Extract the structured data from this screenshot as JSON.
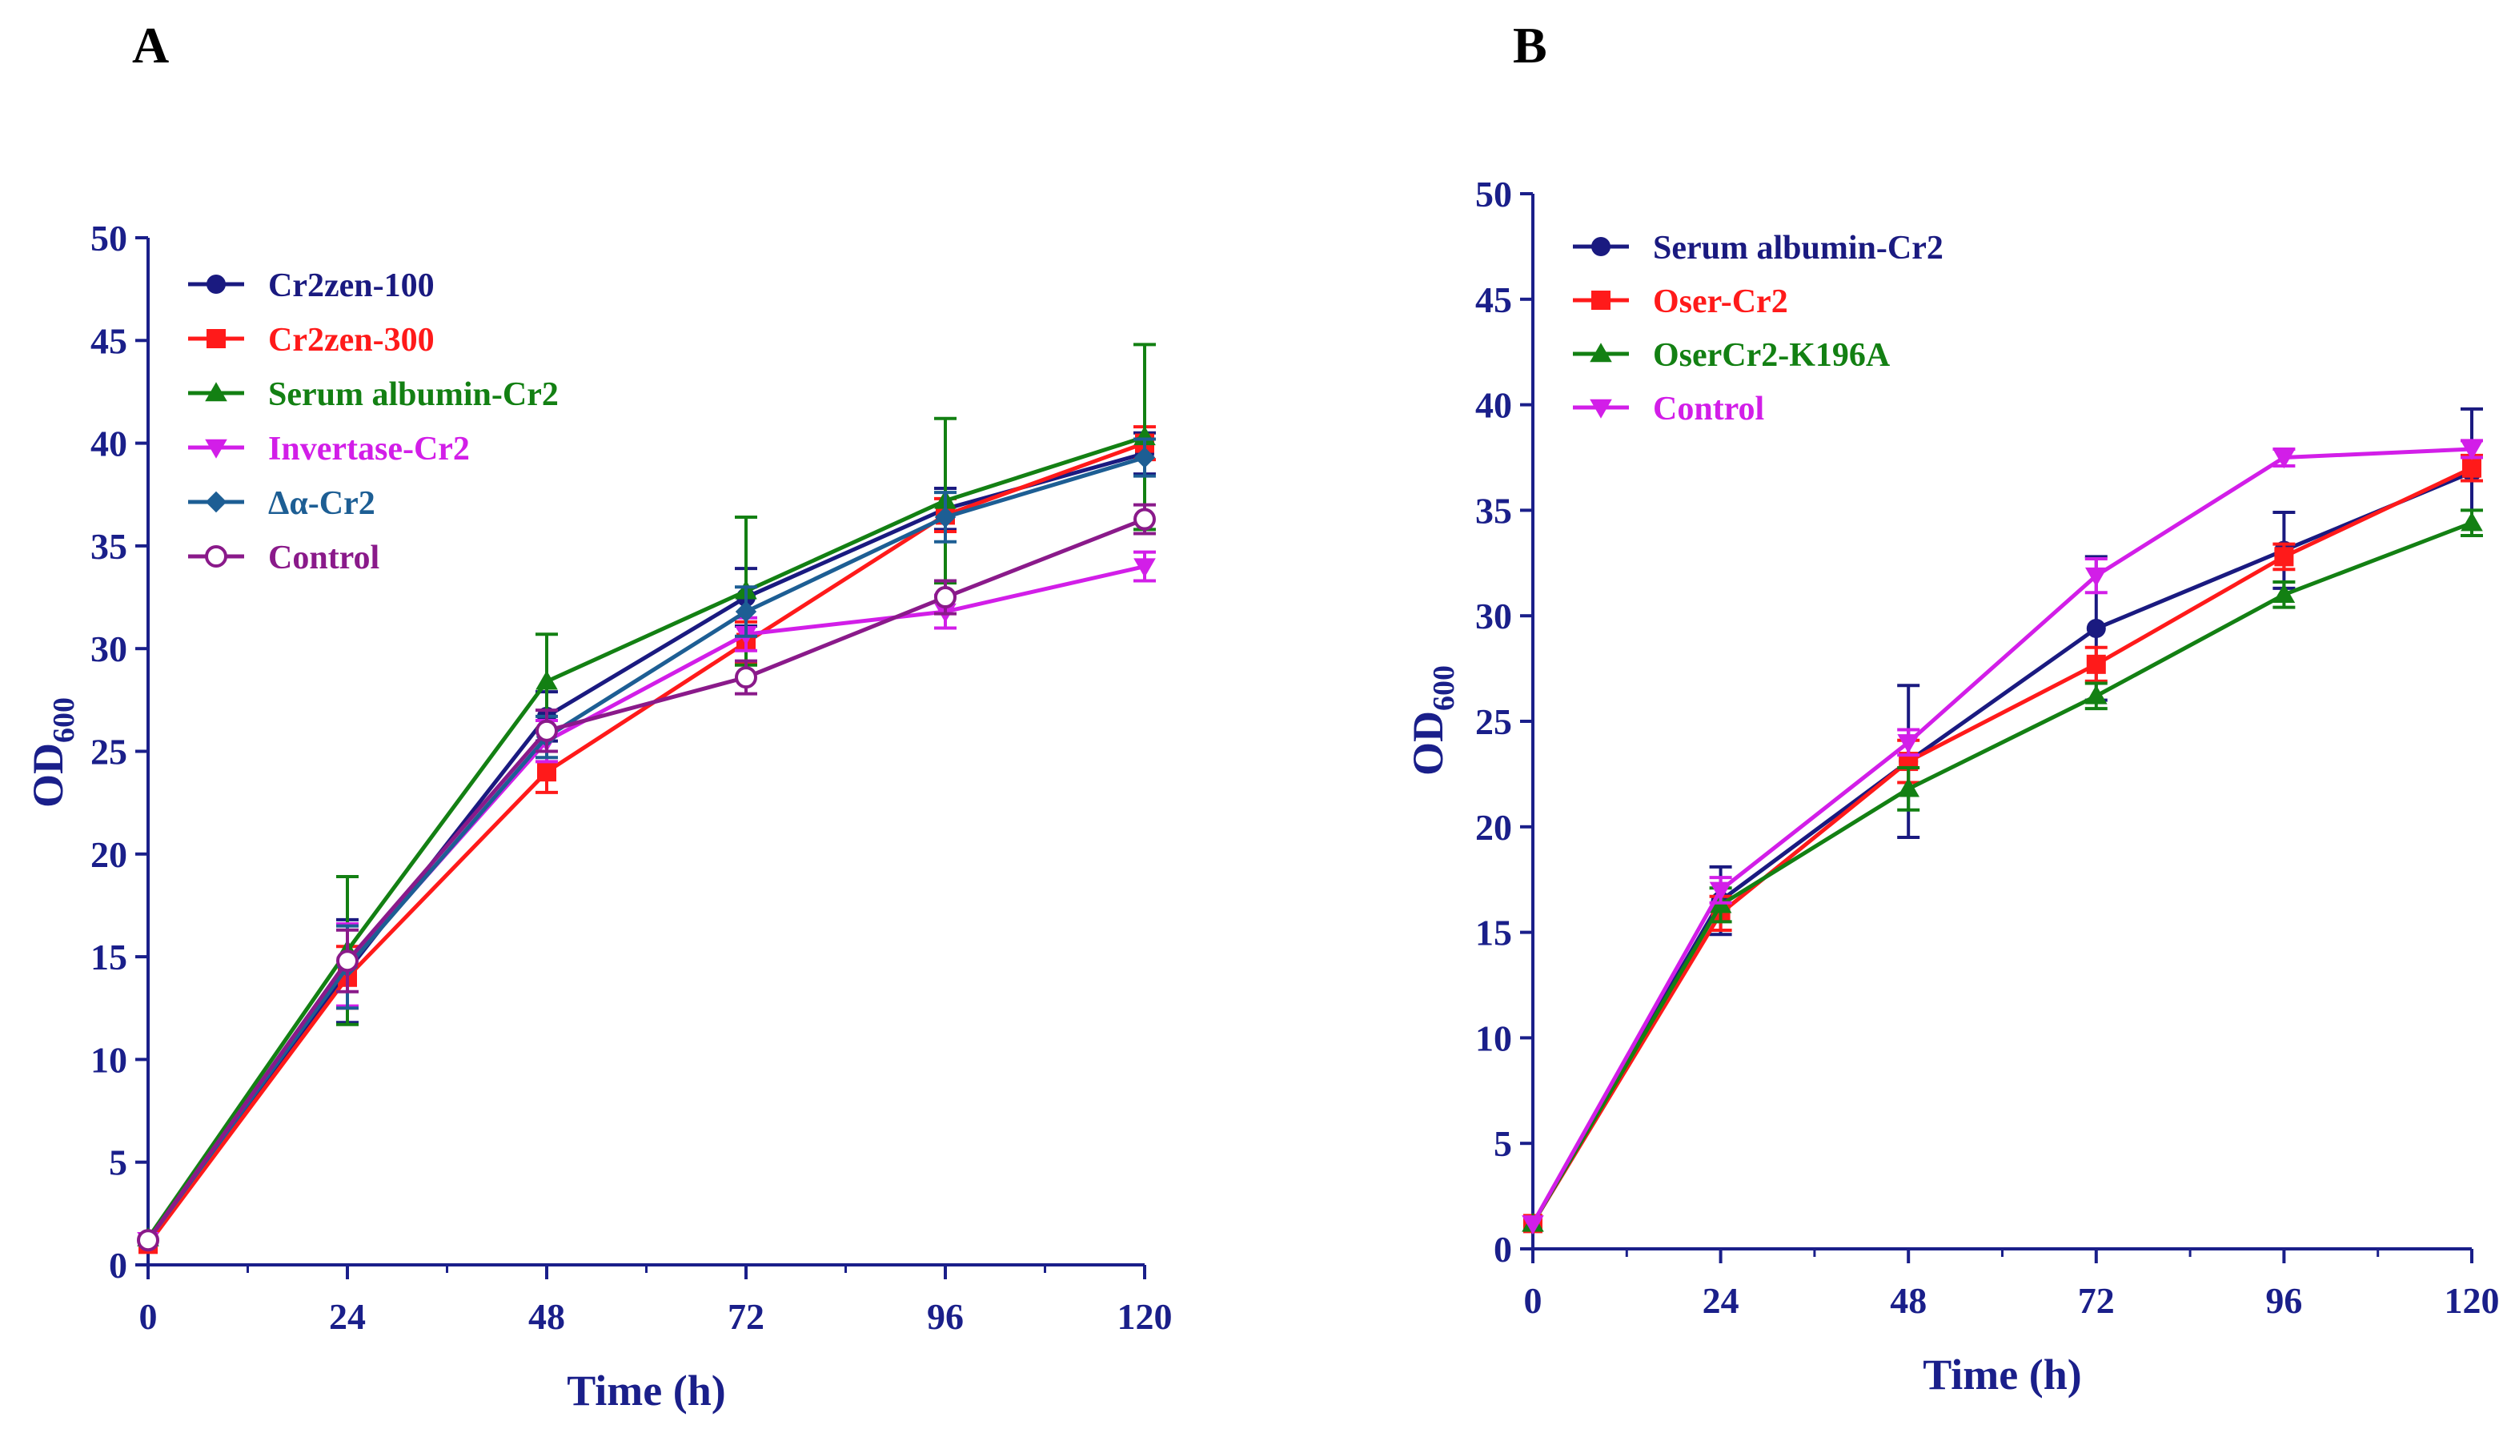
{
  "axis_color": "#1a1f8a",
  "chart_data": [
    {
      "panel": "A",
      "type": "line",
      "title": "",
      "xlabel": "Time (h)",
      "ylabel": "OD",
      "ylabel_sub": "600",
      "xlim": [
        0,
        120
      ],
      "ylim": [
        0,
        50
      ],
      "x_ticks": [
        "0",
        "24",
        "48",
        "72",
        "96",
        "120"
      ],
      "y_ticks": [
        "0",
        "5",
        "10",
        "15",
        "20",
        "25",
        "30",
        "35",
        "40",
        "45",
        "50"
      ],
      "x": [
        0,
        24,
        48,
        72,
        96,
        120
      ],
      "legend_position": "top-left",
      "series": [
        {
          "name": "Cr2zen-100",
          "color": "#1a1a80",
          "marker": "circle",
          "values": [
            1.2,
            14.3,
            26.7,
            32.5,
            36.8,
            39.5
          ],
          "err": [
            0,
            2.5,
            1.2,
            1.4,
            1.0,
            1.0
          ]
        },
        {
          "name": "Cr2zen-300",
          "color": "#ff1a1a",
          "marker": "square",
          "values": [
            1.0,
            14.0,
            24.0,
            30.3,
            36.5,
            40.0
          ],
          "err": [
            0,
            1.5,
            1.0,
            1.0,
            0.8,
            0.8
          ]
        },
        {
          "name": "Serum albumin-Cr2",
          "color": "#138013",
          "marker": "triangle",
          "values": [
            1.3,
            15.3,
            28.4,
            32.8,
            37.2,
            40.3
          ],
          "err": [
            0,
            3.6,
            2.3,
            3.6,
            4.0,
            4.5
          ]
        },
        {
          "name": "Invertase-Cr2",
          "color": "#d21ee8",
          "marker": "triangle-down",
          "values": [
            1.2,
            14.6,
            25.5,
            30.7,
            31.8,
            34.0
          ],
          "err": [
            0,
            2.0,
            1.0,
            0.8,
            0.8,
            0.7
          ]
        },
        {
          "name": "Δα-Cr2",
          "color": "#1d5e94",
          "marker": "diamond",
          "values": [
            1.2,
            14.5,
            25.7,
            31.8,
            36.4,
            39.3
          ],
          "err": [
            0,
            2.0,
            1.0,
            1.2,
            1.2,
            0.9
          ]
        },
        {
          "name": "Control",
          "color": "#8a1a8a",
          "marker": "open-circle",
          "values": [
            1.2,
            14.8,
            26.0,
            28.6,
            32.5,
            36.3
          ],
          "err": [
            0,
            1.5,
            1.0,
            0.8,
            0.8,
            0.7
          ]
        }
      ]
    },
    {
      "panel": "B",
      "type": "line",
      "title": "",
      "xlabel": "Time (h)",
      "ylabel": "OD",
      "ylabel_sub": "600",
      "xlim": [
        0,
        120
      ],
      "ylim": [
        0,
        50
      ],
      "x_ticks": [
        "0",
        "24",
        "48",
        "72",
        "96",
        "120"
      ],
      "y_ticks": [
        "0",
        "5",
        "10",
        "15",
        "20",
        "25",
        "30",
        "35",
        "40",
        "45",
        "50"
      ],
      "x": [
        0,
        24,
        48,
        72,
        96,
        120
      ],
      "legend_position": "top-left",
      "series": [
        {
          "name": "Serum albumin-Cr2",
          "color": "#1a1a80",
          "marker": "circle",
          "values": [
            1.2,
            16.5,
            23.1,
            29.4,
            33.1,
            36.8
          ],
          "err": [
            0,
            1.6,
            3.6,
            3.4,
            1.8,
            3.0
          ]
        },
        {
          "name": "Oser-Cr2",
          "color": "#ff1a1a",
          "marker": "square",
          "values": [
            1.2,
            15.9,
            23.1,
            27.7,
            32.8,
            37.0
          ],
          "err": [
            0,
            0.8,
            1.0,
            0.8,
            0.6,
            0.6
          ]
        },
        {
          "name": "OserCr2-K196A",
          "color": "#138013",
          "marker": "triangle",
          "values": [
            1.2,
            16.3,
            21.8,
            26.2,
            31.0,
            34.4
          ],
          "err": [
            0,
            0.8,
            1.0,
            0.6,
            0.6,
            0.6
          ]
        },
        {
          "name": "Control",
          "color": "#d21ee8",
          "marker": "triangle-down",
          "values": [
            1.2,
            17.0,
            24.0,
            31.9,
            37.5,
            37.9
          ],
          "err": [
            0,
            0.6,
            0.6,
            0.8,
            0.4,
            0.4
          ]
        }
      ]
    }
  ]
}
